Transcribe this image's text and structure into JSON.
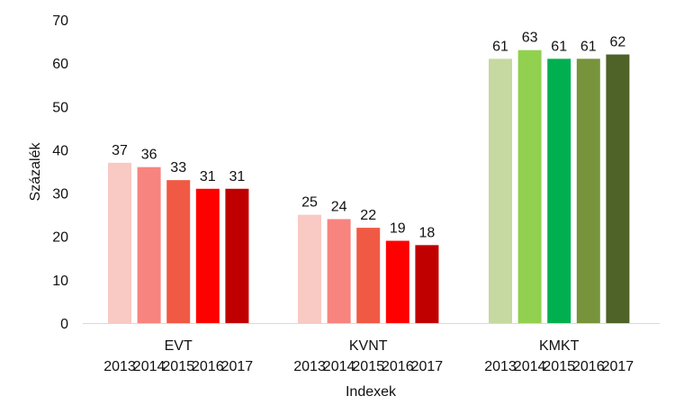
{
  "chart_data": {
    "type": "bar",
    "title": "",
    "xlabel": "Indexek",
    "ylabel": "Százalék",
    "ylim": [
      0,
      70
    ],
    "yticks": [
      0,
      10,
      20,
      30,
      40,
      50,
      60,
      70
    ],
    "grid": false,
    "legend": "none",
    "groups": [
      {
        "name": "EVT",
        "years": [
          "2013",
          "2014",
          "2015",
          "2016",
          "2017"
        ],
        "values": [
          37,
          36,
          33,
          31,
          31
        ],
        "colors": [
          "#F9C9C3",
          "#F7847E",
          "#F05A45",
          "#FF0000",
          "#C00000"
        ]
      },
      {
        "name": "KVNT",
        "years": [
          "2013",
          "2014",
          "2015",
          "2016",
          "2017"
        ],
        "values": [
          25,
          24,
          22,
          19,
          18
        ],
        "colors": [
          "#F9C9C3",
          "#F7847E",
          "#F05A45",
          "#FF0000",
          "#C00000"
        ]
      },
      {
        "name": "KMKT",
        "years": [
          "2013",
          "2014",
          "2015",
          "2016",
          "2017"
        ],
        "values": [
          61,
          63,
          61,
          61,
          62
        ],
        "colors": [
          "#C5D9A0",
          "#92D050",
          "#00B050",
          "#77933C",
          "#4F6228"
        ]
      }
    ]
  }
}
